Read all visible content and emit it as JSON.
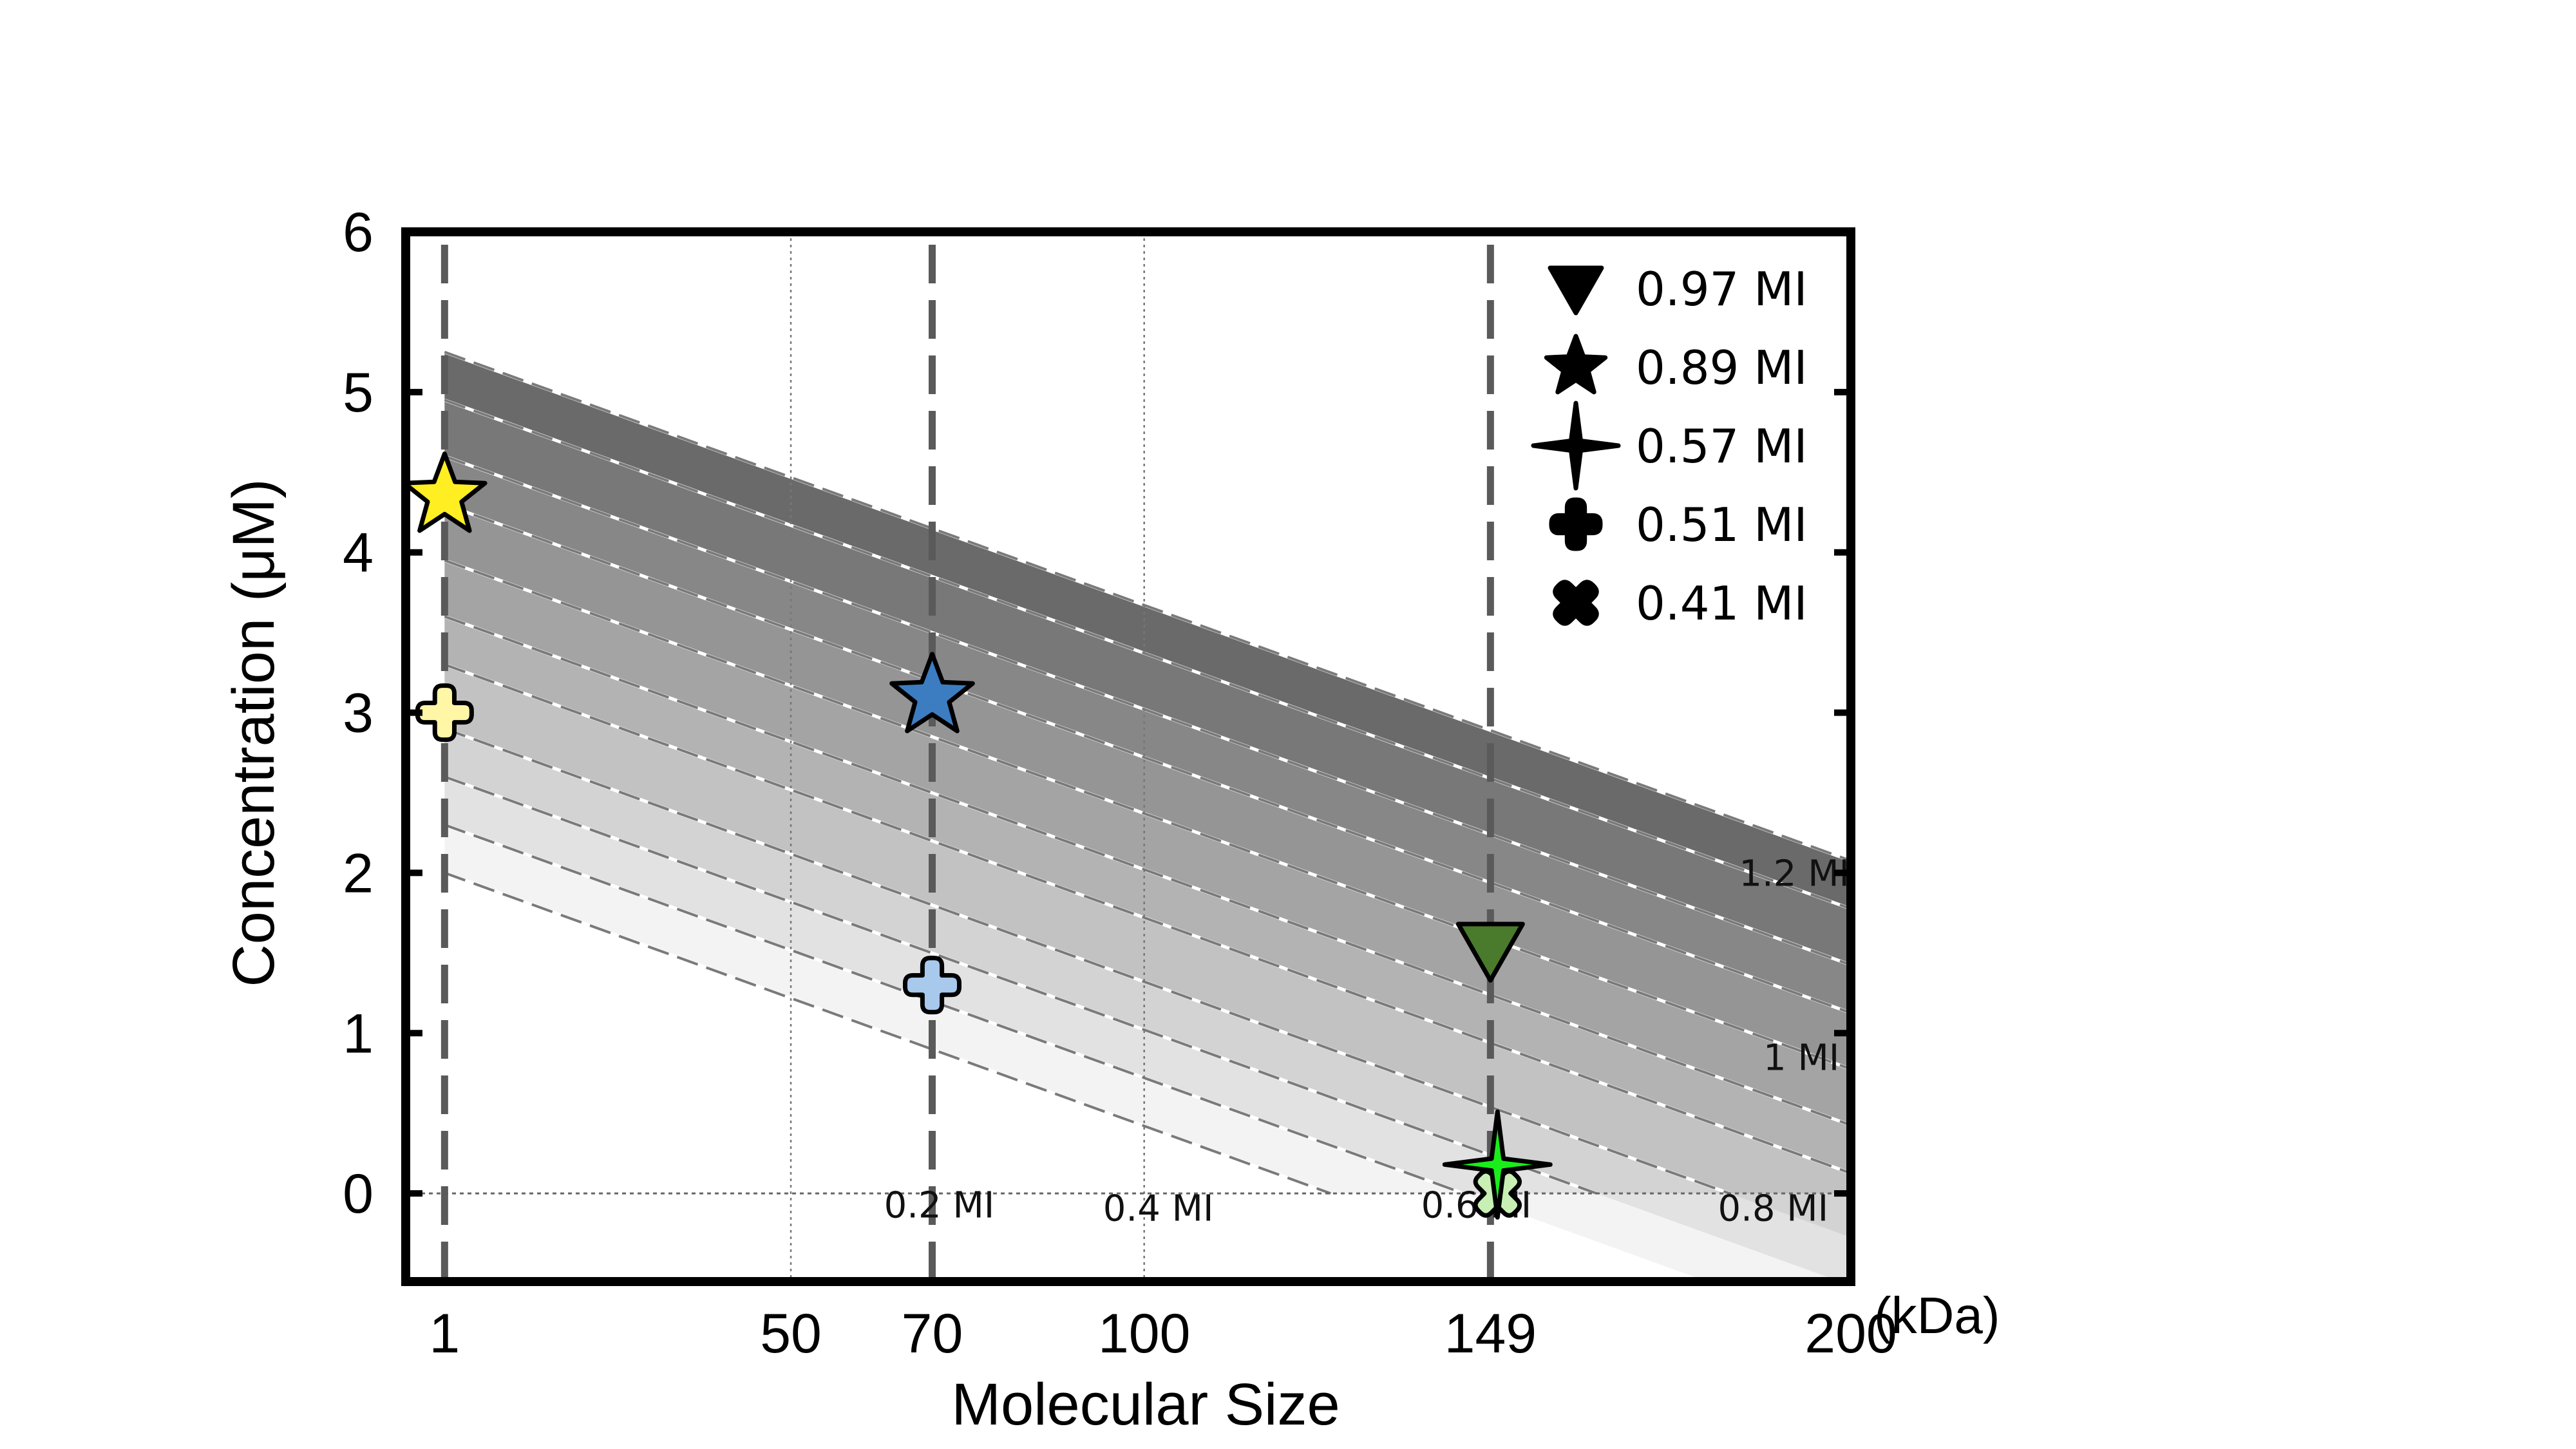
{
  "chart_data": {
    "type": "scatter",
    "title": "",
    "xlabel": "Molecular Size",
    "ylabel": "Concentration (μM)",
    "x_unit_label": "(kDa)",
    "xlim": [
      -4.5,
      200
    ],
    "ylim": [
      -0.55,
      6
    ],
    "xticks": [
      1,
      50,
      70,
      100,
      149,
      200
    ],
    "xtick_labels": [
      "1",
      "50",
      "70",
      "100",
      "149",
      "200"
    ],
    "yticks": [
      0,
      1,
      2,
      3,
      4,
      5,
      6
    ],
    "ytick_labels": [
      "0",
      "1",
      "2",
      "3",
      "4",
      "5",
      "6"
    ],
    "grid_x_dotted": [
      50,
      100
    ],
    "reference_lines_x": [
      1,
      70,
      149
    ],
    "mi_bands": {
      "start_x": 1,
      "end_x": 200,
      "lower_boundary_y_at_1": [
        2.0,
        2.3,
        2.6,
        2.9,
        3.3,
        3.6,
        3.95,
        4.3,
        4.6,
        4.95
      ],
      "upper_boundary_y_at_1": [
        2.3,
        2.6,
        2.9,
        3.3,
        3.6,
        3.95,
        4.3,
        4.6,
        4.95,
        5.25
      ],
      "slope_per_kDa": -0.01595,
      "fills": [
        "#f3f3f3",
        "#e2e2e2",
        "#d3d3d3",
        "#c2c2c2",
        "#b3b3b3",
        "#a4a4a4",
        "#959595",
        "#878787",
        "#787878",
        "#6a6a6a"
      ]
    },
    "band_labels": [
      {
        "text": "0.2 MI",
        "x": 71,
        "y": -0.15
      },
      {
        "text": "0.4 MI",
        "x": 102,
        "y": -0.17
      },
      {
        "text": "0.6 MI",
        "x": 147,
        "y": -0.15
      },
      {
        "text": "0.8 MI",
        "x": 189,
        "y": -0.17
      },
      {
        "text": "1 MI",
        "x": 193,
        "y": 0.77
      },
      {
        "text": "1.2 MI",
        "x": 192,
        "y": 1.92
      }
    ],
    "points": [
      {
        "name": "star-yellow-1kDa",
        "marker": "star",
        "x": 1,
        "y": 4.35,
        "color": "#ffee22"
      },
      {
        "name": "cross-lightyellow-1kDa",
        "marker": "cross",
        "x": 1,
        "y": 3.0,
        "color": "#fff6a6"
      },
      {
        "name": "star-blue-70kDa",
        "marker": "star",
        "x": 70,
        "y": 3.1,
        "color": "#3c7dc1"
      },
      {
        "name": "cross-lightblue-70kDa",
        "marker": "cross",
        "x": 70,
        "y": 1.3,
        "color": "#a8c8ec"
      },
      {
        "name": "triangle-green-149kDa",
        "marker": "triangle-down",
        "x": 149,
        "y": 1.52,
        "color": "#4a7a2c"
      },
      {
        "name": "x-lightgreen-149kDa",
        "marker": "x",
        "x": 150,
        "y": 0.0,
        "color": "#c8f0b4"
      },
      {
        "name": "sparkle-green-149kDa",
        "marker": "sparkle",
        "x": 150,
        "y": 0.18,
        "color": "#1aee1a"
      }
    ],
    "legend": {
      "placement": "top-right",
      "entries": [
        {
          "marker": "triangle-down",
          "label": "0.97 MI"
        },
        {
          "marker": "star",
          "label": "0.89 MI"
        },
        {
          "marker": "sparkle",
          "label": "0.57 MI"
        },
        {
          "marker": "cross",
          "label": "0.51 MI"
        },
        {
          "marker": "x",
          "label": "0.41 MI"
        }
      ]
    }
  }
}
